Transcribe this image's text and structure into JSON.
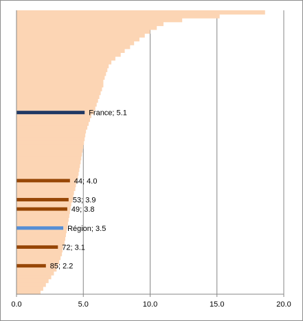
{
  "chart_data": {
    "type": "bar",
    "orientation": "horizontal",
    "title": "",
    "xlabel": "",
    "ylabel": "",
    "xlim": [
      0,
      20
    ],
    "xticks": [
      "0.0",
      "5.0",
      "10.0",
      "15.0",
      "20.0"
    ],
    "grid": "vertical",
    "distribution_color": "#fcd5b4",
    "distribution_values": [
      18.6,
      15.2,
      12.4,
      11.0,
      10.5,
      10.0,
      9.6,
      9.2,
      8.8,
      8.5,
      8.1,
      7.8,
      7.4,
      7.1,
      6.9,
      6.8,
      6.7,
      6.6,
      6.5,
      6.5,
      6.4,
      6.3,
      6.2,
      6.1,
      6.0,
      5.9,
      5.8,
      5.6,
      5.5,
      5.4,
      5.3,
      5.2,
      5.15,
      5.1,
      5.05,
      5.0,
      4.95,
      4.9,
      4.85,
      4.8,
      4.75,
      4.7,
      4.65,
      4.6,
      4.5,
      4.45,
      4.4,
      4.3,
      4.25,
      4.2,
      4.1,
      4.05,
      4.0,
      3.95,
      3.9,
      3.85,
      3.8,
      3.75,
      3.7,
      3.65,
      3.6,
      3.5,
      3.45,
      3.4,
      3.3,
      3.2,
      3.1,
      3.0,
      2.8,
      2.6,
      2.4,
      2.2,
      2.0,
      1.8
    ],
    "highlights": [
      {
        "label": "France; 5.1",
        "value": 5.1,
        "rank": 0.36,
        "color": "#1f3864"
      },
      {
        "label": "44; 4.0",
        "value": 4.0,
        "rank": 0.6,
        "color": "#974706"
      },
      {
        "label": "53; 3.9",
        "value": 3.9,
        "rank": 0.667,
        "color": "#974706"
      },
      {
        "label": "49; 3.8",
        "value": 3.8,
        "rank": 0.7,
        "color": "#974706"
      },
      {
        "label": "Région; 3.5",
        "value": 3.5,
        "rank": 0.767,
        "color": "#558ed5"
      },
      {
        "label": "72; 3.1",
        "value": 3.1,
        "rank": 0.834,
        "color": "#974706"
      },
      {
        "label": "85; 2.2",
        "value": 2.2,
        "rank": 0.9,
        "color": "#974706"
      }
    ]
  }
}
